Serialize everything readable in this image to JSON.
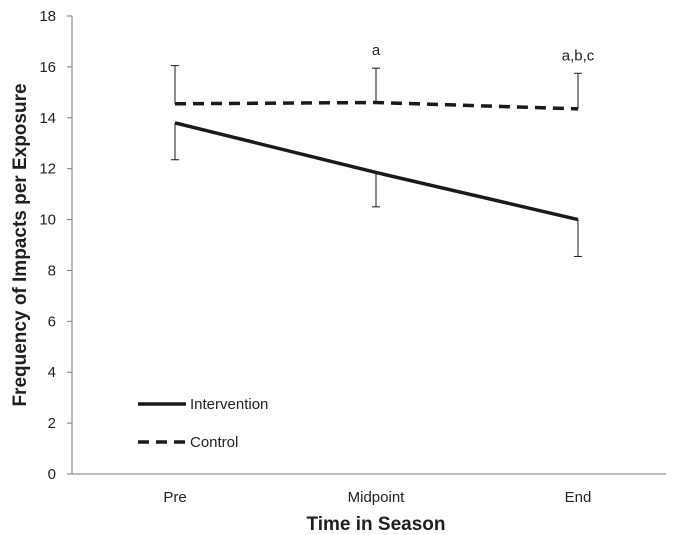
{
  "chart_data": {
    "type": "line",
    "xlabel": "Time in Season",
    "ylabel": "Frequency of Impacts per Exposure",
    "categories": [
      "Pre",
      "Midpoint",
      "End"
    ],
    "ylim": [
      0,
      18
    ],
    "yticks": [
      0,
      2,
      4,
      6,
      8,
      10,
      12,
      14,
      16,
      18
    ],
    "series": [
      {
        "name": "Intervention",
        "style": "solid",
        "values": [
          13.8,
          11.85,
          10.0
        ],
        "error_down": [
          1.45,
          1.35,
          1.45
        ]
      },
      {
        "name": "Control",
        "style": "dashed",
        "values": [
          14.55,
          14.6,
          14.35
        ],
        "error_up": [
          1.5,
          1.35,
          1.4
        ]
      }
    ],
    "annotations": [
      {
        "category": "Midpoint",
        "text": "a"
      },
      {
        "category": "End",
        "text": "a,b,c"
      }
    ],
    "legend": "bottom-left",
    "grid": false
  }
}
